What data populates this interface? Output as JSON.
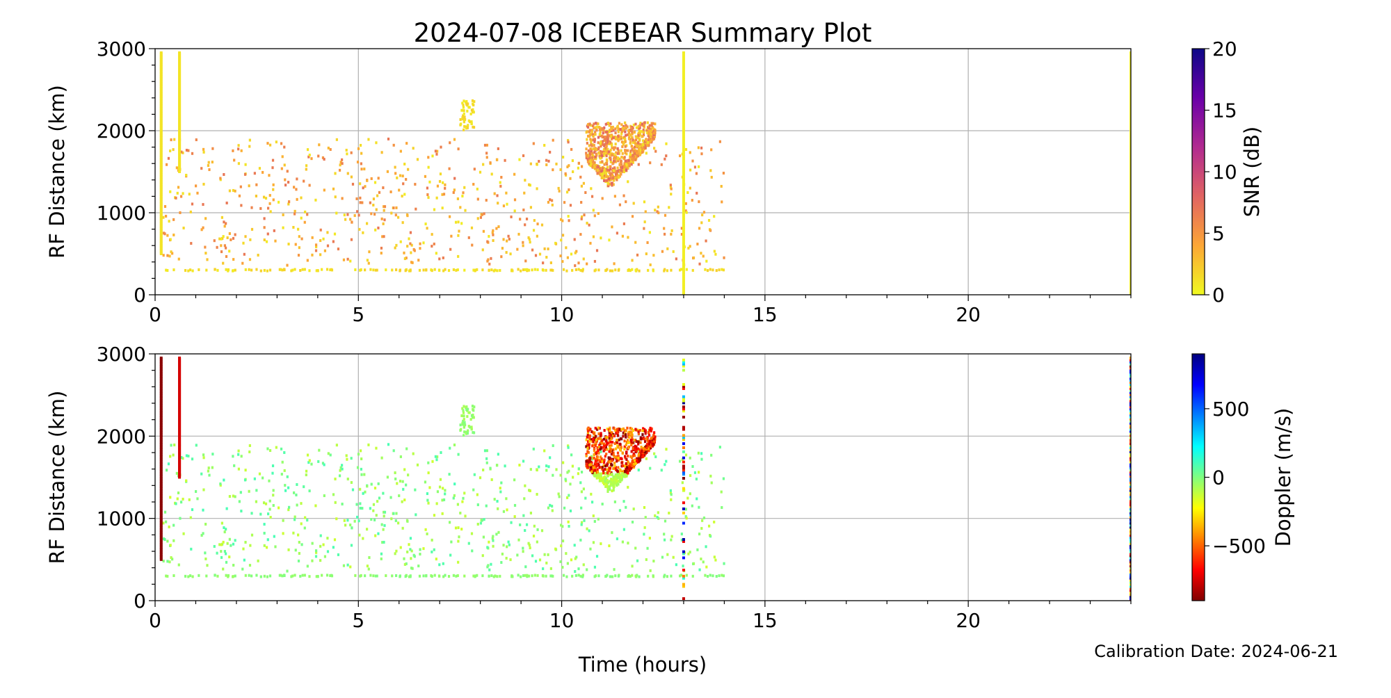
{
  "chart_data": {
    "type": "scatter",
    "title": "2024-07-08 ICEBEAR Summary Plot",
    "footer": "Calibration Date: 2024-06-21",
    "xlabel": "Time (hours)",
    "xlim": [
      0,
      24
    ],
    "x_ticks": [
      0,
      5,
      10,
      15,
      20
    ],
    "grid": true,
    "panels": [
      {
        "name": "snr",
        "ylabel": "RF Distance (km)",
        "ylim": [
          0,
          3000
        ],
        "y_ticks": [
          0,
          1000,
          2000,
          3000
        ],
        "colorbar": {
          "label": "SNR (dB)",
          "range": [
            0,
            20
          ],
          "ticks": [
            0,
            5,
            10,
            15,
            20
          ],
          "colormap": "plasma_r",
          "stops": [
            "#f0f921",
            "#fca636",
            "#e16462",
            "#b12a90",
            "#6a00a8",
            "#0d0887"
          ]
        }
      },
      {
        "name": "doppler",
        "ylabel": "RF Distance (km)",
        "ylim": [
          0,
          3000
        ],
        "y_ticks": [
          0,
          1000,
          2000,
          3000
        ],
        "colorbar": {
          "label": "Doppler (m/s)",
          "range": [
            -900,
            900
          ],
          "ticks": [
            -500,
            0,
            500
          ],
          "colormap": "jet_r",
          "stops": [
            "#800000",
            "#ff0000",
            "#ff8000",
            "#ffff00",
            "#80ff80",
            "#00ffff",
            "#0080ff",
            "#0000ff",
            "#000080"
          ]
        }
      }
    ],
    "streaks": [
      {
        "t": 0.15,
        "r": [
          500,
          2950
        ],
        "snr": 1,
        "doppler": -880
      },
      {
        "t": 0.6,
        "r": [
          1500,
          2950
        ],
        "snr": 1,
        "doppler": -750
      },
      {
        "t": 13.0,
        "r": [
          0,
          2950
        ],
        "snr": 0.5,
        "doppler": "mixed"
      },
      {
        "t": 24.0,
        "r": [
          0,
          2950
        ],
        "snr": 0.5,
        "doppler": "mixed"
      }
    ],
    "clusters": [
      {
        "label": "background scatter",
        "t": [
          0.2,
          14.0
        ],
        "r": [
          350,
          1900
        ],
        "n": 700,
        "snr": [
          0.5,
          7
        ],
        "doppler": [
          -150,
          100
        ]
      },
      {
        "label": "300 km line",
        "t": [
          0.2,
          14.0
        ],
        "r": [
          290,
          310
        ],
        "n": 160,
        "snr": [
          0.5,
          2
        ],
        "doppler": [
          -50,
          0
        ]
      },
      {
        "label": "7.7 h patch",
        "t": [
          7.5,
          7.85
        ],
        "r": [
          2000,
          2380
        ],
        "n": 50,
        "snr": [
          0.5,
          2
        ],
        "doppler": [
          -80,
          0
        ]
      },
      {
        "label": "main echo",
        "t": [
          10.6,
          12.3
        ],
        "r": [
          1250,
          2100
        ],
        "n": 900,
        "snr": [
          1,
          8
        ],
        "doppler": [
          -900,
          -300
        ]
      }
    ]
  }
}
